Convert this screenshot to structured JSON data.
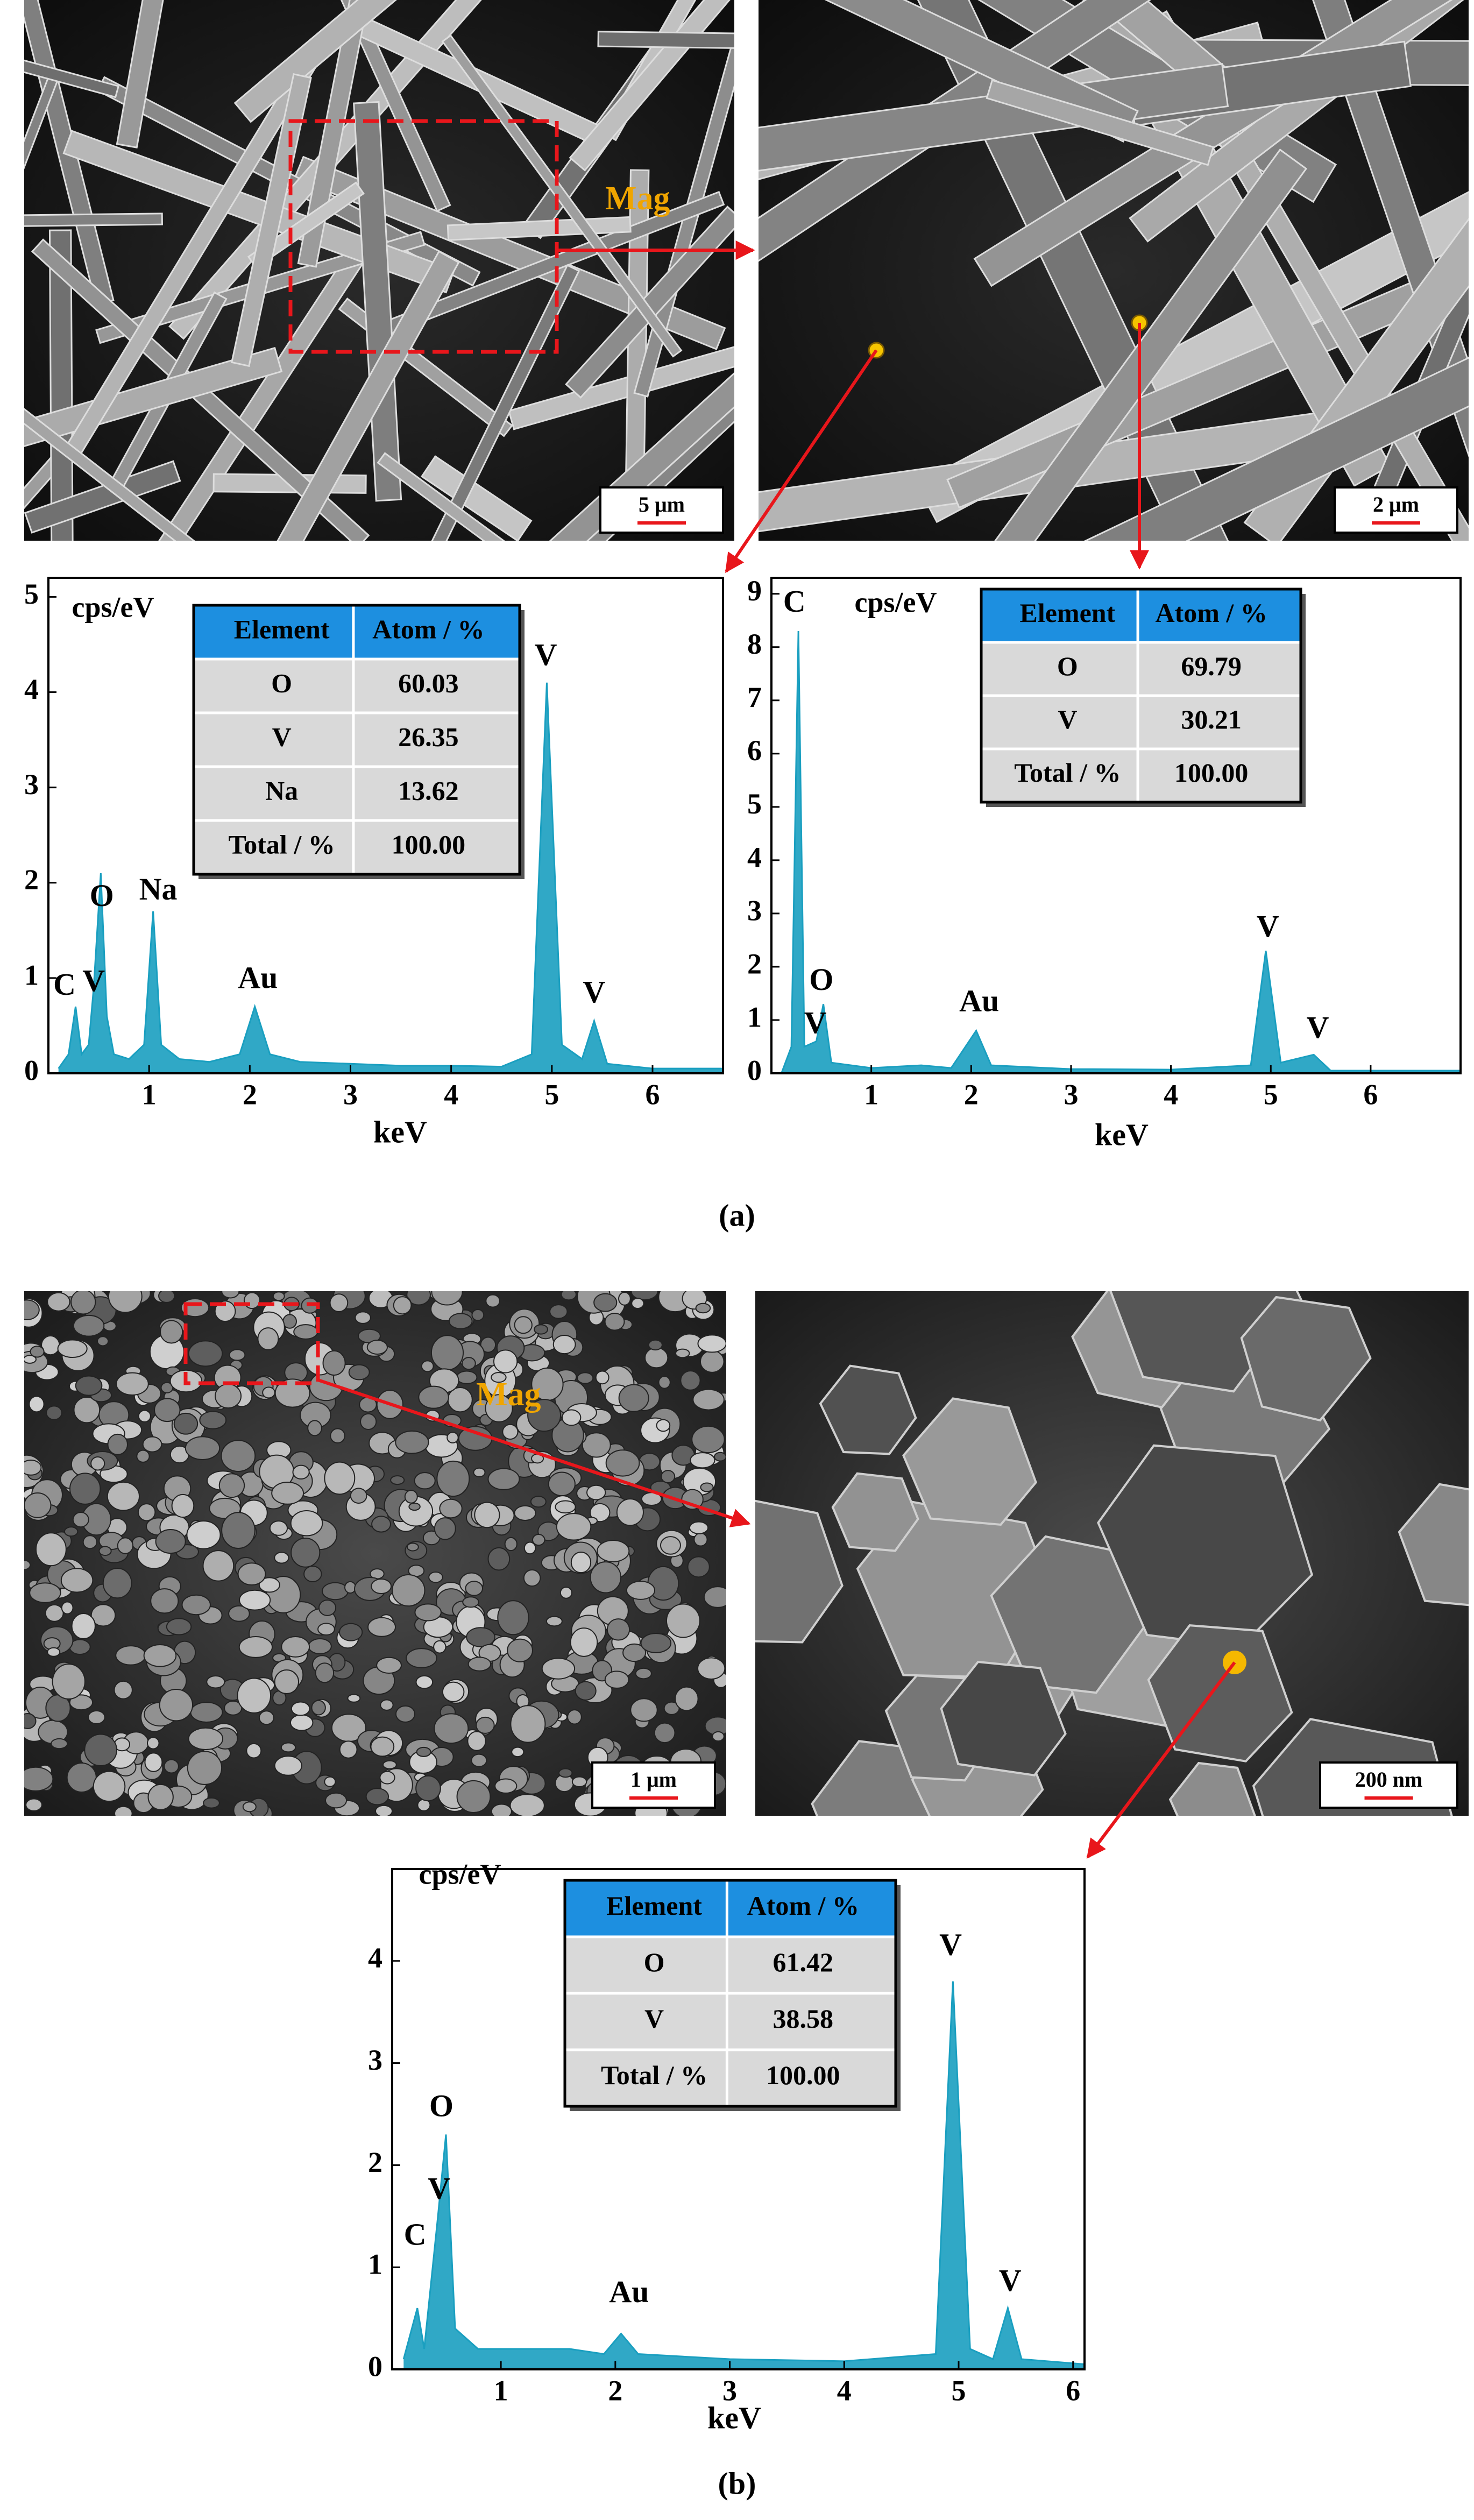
{
  "figure": {
    "panel_a": "(a)",
    "panel_b": "(b)",
    "mag_a": "Mag",
    "mag_b": "Mag",
    "scale_bars": [
      "5 μm",
      "2 μm",
      "1 μm",
      "200 nm"
    ]
  },
  "chart_data": [
    {
      "type": "area",
      "x_label": "keV",
      "y_label": "cps/eV",
      "color": "#1a9fc0",
      "x": [
        0.1,
        0.2,
        0.27,
        0.33,
        0.4,
        0.45,
        0.52,
        0.58,
        0.65,
        0.8,
        0.95,
        1.04,
        1.12,
        1.3,
        1.6,
        1.9,
        2.05,
        2.2,
        2.5,
        3.0,
        3.5,
        4.0,
        4.5,
        4.8,
        4.95,
        5.1,
        5.3,
        5.42,
        5.55,
        6.0,
        6.7
      ],
      "values": [
        0.05,
        0.2,
        0.7,
        0.2,
        0.3,
        0.9,
        2.1,
        0.6,
        0.2,
        0.15,
        0.3,
        1.7,
        0.3,
        0.15,
        0.12,
        0.2,
        0.7,
        0.2,
        0.12,
        0.1,
        0.08,
        0.08,
        0.07,
        0.2,
        4.1,
        0.3,
        0.15,
        0.55,
        0.1,
        0.05,
        0.05
      ],
      "xlim": [
        0,
        6.7
      ],
      "ylim": [
        0,
        5.2
      ],
      "xticks": [
        1,
        2,
        3,
        4,
        5,
        6
      ],
      "yticks": [
        0,
        1,
        2,
        3,
        4,
        5
      ],
      "peak_labels": [
        "C",
        "V",
        "O",
        "Na",
        "Au",
        "V",
        "V"
      ],
      "table": {
        "columns": [
          "Element",
          "Atom / %"
        ],
        "rows": [
          [
            "O",
            "60.03"
          ],
          [
            "V",
            "26.35"
          ],
          [
            "Na",
            "13.62"
          ],
          [
            "Total / %",
            "100.00"
          ]
        ]
      }
    },
    {
      "type": "area",
      "x_label": "keV",
      "y_label": "cps/eV",
      "color": "#1a9fc0",
      "x": [
        0.1,
        0.2,
        0.27,
        0.33,
        0.45,
        0.52,
        0.6,
        1.0,
        1.5,
        1.8,
        2.05,
        2.2,
        3.0,
        4.0,
        4.8,
        4.95,
        5.1,
        5.43,
        5.6,
        6.9
      ],
      "values": [
        0,
        0.5,
        8.3,
        0.5,
        0.6,
        1.3,
        0.2,
        0.1,
        0.15,
        0.1,
        0.8,
        0.15,
        0.08,
        0.07,
        0.15,
        2.3,
        0.2,
        0.35,
        0.05,
        0.05
      ],
      "xlim": [
        0,
        6.9
      ],
      "ylim": [
        0,
        9.3
      ],
      "xticks": [
        1,
        2,
        3,
        4,
        5,
        6
      ],
      "yticks": [
        0,
        1,
        2,
        3,
        4,
        5,
        6,
        7,
        8,
        9
      ],
      "peak_labels": [
        "C",
        "V",
        "O",
        "Au",
        "V",
        "V"
      ],
      "table": {
        "columns": [
          "Element",
          "Atom / %"
        ],
        "rows": [
          [
            "O",
            "69.79"
          ],
          [
            "V",
            "30.21"
          ],
          [
            "Total / %",
            "100.00"
          ]
        ]
      }
    },
    {
      "type": "area",
      "x_label": "keV",
      "y_label": "cps/eV",
      "color": "#1a9fc0",
      "x": [
        0.15,
        0.27,
        0.33,
        0.45,
        0.52,
        0.6,
        0.8,
        1.2,
        1.6,
        1.9,
        2.05,
        2.2,
        3.0,
        4.0,
        4.8,
        4.95,
        5.1,
        5.3,
        5.43,
        5.55,
        6.1
      ],
      "values": [
        0.1,
        0.6,
        0.2,
        1.5,
        2.3,
        0.4,
        0.2,
        0.2,
        0.2,
        0.15,
        0.35,
        0.15,
        0.1,
        0.08,
        0.15,
        3.8,
        0.2,
        0.1,
        0.6,
        0.1,
        0.05
      ],
      "xlim": [
        0.05,
        6.1
      ],
      "ylim": [
        0,
        4.9
      ],
      "xticks": [
        1,
        2,
        3,
        4,
        5,
        6
      ],
      "yticks": [
        0,
        1,
        2,
        3,
        4
      ],
      "peak_labels": [
        "C",
        "V",
        "O",
        "Au",
        "V",
        "V"
      ],
      "table": {
        "columns": [
          "Element",
          "Atom / %"
        ],
        "rows": [
          [
            "O",
            "61.42"
          ],
          [
            "V",
            "38.58"
          ],
          [
            "Total / %",
            "100.00"
          ]
        ]
      }
    }
  ]
}
